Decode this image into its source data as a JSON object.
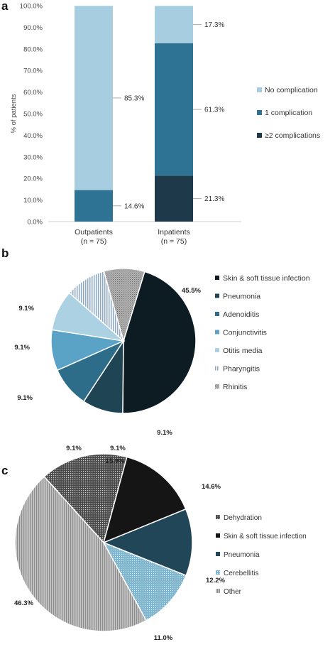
{
  "chart_data": [
    {
      "panel": "a",
      "type": "bar",
      "stacked": true,
      "ylabel": "% of patients",
      "ylim": [
        0,
        100
      ],
      "yticks": [
        "0.0%",
        "10.0%",
        "20.0%",
        "30.0%",
        "40.0%",
        "50.0%",
        "60.0%",
        "70.0%",
        "80.0%",
        "90.0%",
        "100.0%"
      ],
      "categories": [
        "Outpatients\n(n = 75)",
        "Inpatients\n(n = 75)"
      ],
      "series": [
        {
          "name": "≥2 complications",
          "values": [
            0,
            21.3
          ],
          "color": "#1e3a4a"
        },
        {
          "name": "1 complication",
          "values": [
            14.6,
            61.3
          ],
          "color": "#2e7394"
        },
        {
          "name": "No complication",
          "values": [
            85.3,
            17.3
          ],
          "color": "#a6cde0"
        }
      ],
      "data_labels": [
        {
          "bar": 0,
          "series": "1 complication",
          "text": "14.6%"
        },
        {
          "bar": 0,
          "series": "No complication",
          "text": "85.3%"
        },
        {
          "bar": 1,
          "series": "≥2 complications",
          "text": "21.3%"
        },
        {
          "bar": 1,
          "series": "1 complication",
          "text": "61.3%"
        },
        {
          "bar": 1,
          "series": "No complication",
          "text": "17.3%"
        }
      ],
      "legend": [
        "No complication",
        "1 complication",
        "≥2 complications"
      ],
      "legend_position": "right"
    },
    {
      "panel": "b",
      "type": "pie",
      "labels": [
        "Skin & soft tissue infection",
        "Pneumonia",
        "Adenoiditis",
        "Conjunctivitis",
        "Otitis media",
        "Pharyngitis",
        "Rhinitis"
      ],
      "values": [
        45.5,
        9.1,
        9.1,
        9.1,
        9.1,
        9.1,
        9.1
      ],
      "value_labels": [
        "45.5%",
        "9.1%",
        "9.1%",
        "9.1%",
        "9.1%",
        "9.1%",
        "9.1%"
      ],
      "colors": [
        "#0d1b22",
        "#1f4454",
        "#2d6d8a",
        "#5aa3c6",
        "#abd1e3",
        "#hatch-blue",
        "#hatch-gray"
      ],
      "legend_position": "right"
    },
    {
      "panel": "c",
      "type": "pie",
      "labels": [
        "Dehydration",
        "Skin & soft tissue infection",
        "Pneumonia",
        "Cerebellitis",
        "Other"
      ],
      "values": [
        15.9,
        14.6,
        12.2,
        11.0,
        46.3
      ],
      "value_labels": [
        "15.9%",
        "14.6%",
        "12.2%",
        "11.0%",
        "46.3%"
      ],
      "colors": [
        "#dots-dark",
        "#151515",
        "#214657",
        "#dots-blue",
        "#lines-gray"
      ],
      "legend_position": "right"
    }
  ],
  "panels": {
    "a": "a",
    "b": "b",
    "c": "c"
  }
}
